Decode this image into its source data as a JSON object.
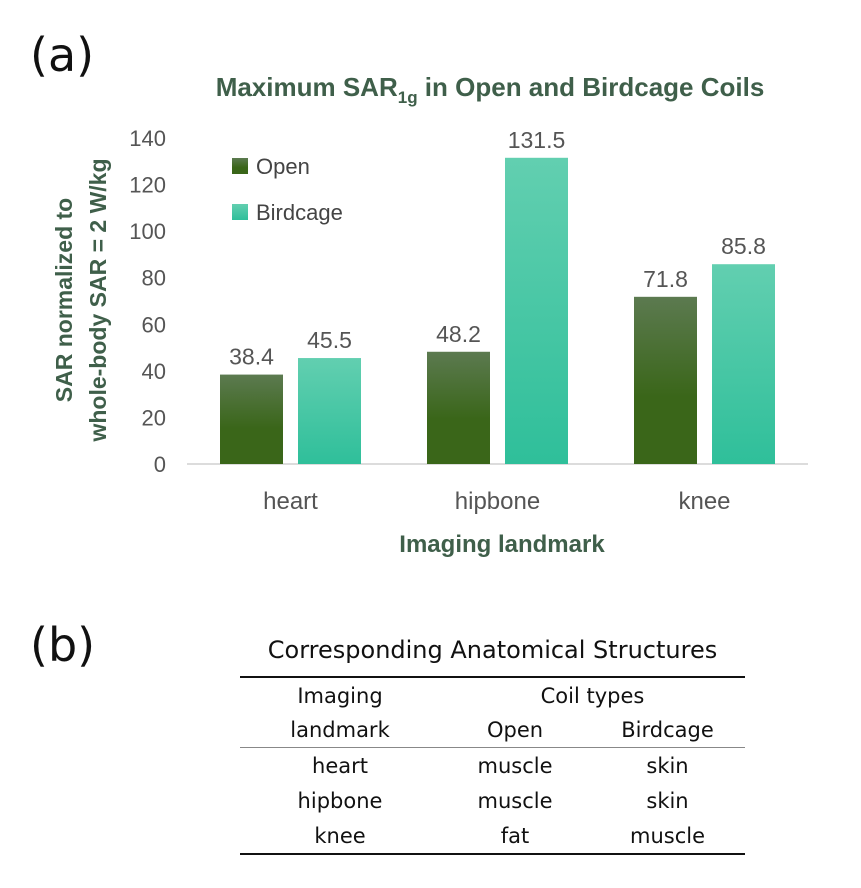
{
  "panel_a_label": "(a)",
  "panel_b_label": "(b)",
  "chart_data": {
    "type": "bar",
    "title_main": "Maximum SAR",
    "title_sub": "1g",
    "title_rest": " in Open and Birdcage Coils",
    "xlabel": "Imaging landmark",
    "ylabel_line1": "SAR normalized to",
    "ylabel_line2": "whole-body SAR = 2 W/kg",
    "categories": [
      "heart",
      "hipbone",
      "knee"
    ],
    "series": [
      {
        "name": "Open",
        "values": [
          38.4,
          48.2,
          71.8
        ],
        "color_top": "#5c7a50",
        "color_bottom": "#3a6619"
      },
      {
        "name": "Birdcage",
        "values": [
          45.5,
          131.5,
          85.8
        ],
        "color_top": "#62cfb0",
        "color_bottom": "#2fbf9a"
      }
    ],
    "ylim": [
      0,
      140
    ],
    "yticks": [
      0,
      20,
      40,
      60,
      80,
      100,
      120,
      140
    ],
    "legend_position": "top-left"
  },
  "table": {
    "title": "Corresponding Anatomical Structures",
    "header_landmark_1": "Imaging",
    "header_landmark_2": "landmark",
    "header_coil_types": "Coil types",
    "header_open": "Open",
    "header_birdcage": "Birdcage",
    "rows": [
      {
        "landmark": "heart",
        "open": "muscle",
        "birdcage": "skin"
      },
      {
        "landmark": "hipbone",
        "open": "muscle",
        "birdcage": "skin"
      },
      {
        "landmark": "knee",
        "open": "fat",
        "birdcage": "muscle"
      }
    ]
  }
}
